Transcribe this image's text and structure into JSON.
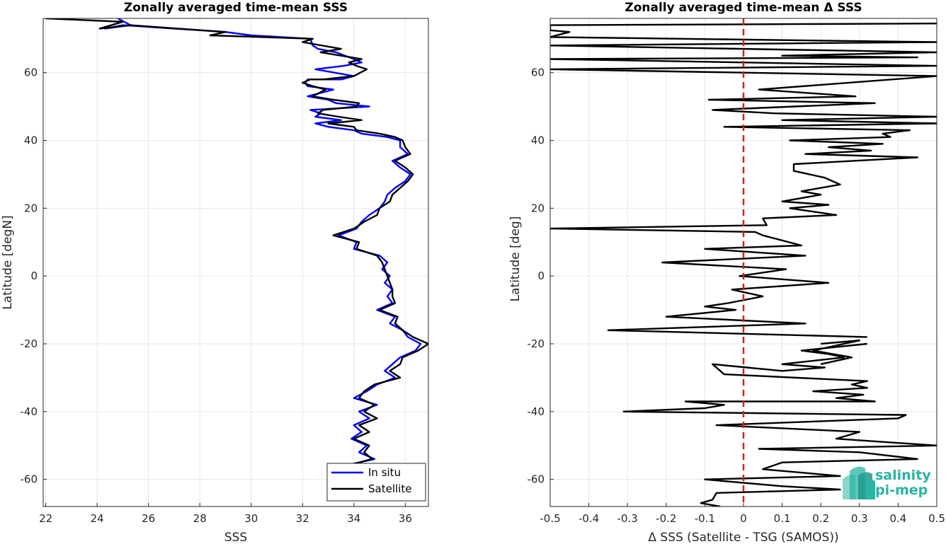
{
  "colors": {
    "insitu": "#0000ff",
    "satellite": "#000000",
    "zero_line": "#e31a1c",
    "logo": "#2bb3a3"
  },
  "logo": {
    "line1": "salinity",
    "line2": "pi-mep"
  },
  "chart_data": [
    {
      "type": "line",
      "title": "Zonally averaged time-mean SSS",
      "xlabel": "SSS",
      "ylabel": "Latitude [degN]",
      "xlim": [
        21.9,
        36.9
      ],
      "ylim": [
        -68,
        76
      ],
      "xticks": [
        22,
        24,
        26,
        28,
        30,
        32,
        34,
        36
      ],
      "yticks": [
        -60,
        -40,
        -20,
        0,
        20,
        40,
        60
      ],
      "grid": true,
      "legend_position": "bottom-right",
      "series": [
        {
          "name": "In situ",
          "color": "#0000ff",
          "x": [
            24.8,
            25.3,
            24.3,
            25.0,
            29.0,
            30.0,
            32.3,
            32.4,
            32.6,
            33.3,
            34.0,
            34.3,
            33.6,
            32.5,
            34.0,
            33.5,
            32.2,
            32.1,
            32.2,
            33.2,
            32.2,
            33.0,
            33.3,
            34.6,
            32.3,
            32.7,
            32.5,
            33.5,
            32.5,
            33.0,
            34.0,
            34.3,
            35.3,
            35.8,
            35.8,
            36.1,
            35.5,
            35.8,
            36.2,
            36.0,
            35.6,
            35.3,
            35.2,
            35.0,
            34.6,
            34.3,
            34.1,
            33.4,
            34.1,
            34.0,
            35.0,
            35.3,
            35.1,
            35.4,
            35.2,
            35.5,
            35.3,
            35.5,
            34.9,
            35.6,
            35.4,
            35.9,
            36.1,
            36.6,
            36.4,
            35.8,
            35.5,
            35.2,
            35.6,
            34.9,
            34.5,
            34.0,
            34.9,
            34.2,
            34.6,
            34.0,
            34.3,
            33.9,
            34.5,
            34.2,
            34.8,
            33.6,
            33.4,
            33.7
          ],
          "y": [
            76,
            74,
            73,
            74,
            72,
            71,
            70,
            68,
            67,
            66,
            64,
            63,
            62,
            61,
            59,
            58,
            58,
            57,
            56,
            55,
            53,
            52,
            51,
            50,
            49,
            48,
            47,
            46,
            45,
            44,
            43,
            42,
            41,
            40,
            38,
            36,
            34,
            32,
            30,
            28,
            26,
            24,
            22,
            20,
            18,
            16,
            14,
            12,
            10,
            8,
            6,
            4,
            2,
            0,
            -2,
            -4,
            -6,
            -8,
            -10,
            -12,
            -14,
            -16,
            -18,
            -20,
            -22,
            -24,
            -26,
            -28,
            -30,
            -32,
            -34,
            -36,
            -38,
            -40,
            -42,
            -44,
            -46,
            -48,
            -50,
            -52,
            -54,
            -56,
            -58,
            -60
          ]
        },
        {
          "name": "Satellite",
          "color": "#000000",
          "x": [
            22.0,
            25.0,
            24.1,
            25.3,
            29.0,
            28.4,
            32.4,
            32.0,
            33.5,
            32.7,
            34.3,
            33.8,
            34.1,
            34.5,
            34.0,
            32.8,
            32.3,
            32.0,
            32.4,
            32.9,
            32.4,
            33.2,
            34.2,
            34.1,
            32.8,
            32.6,
            33.4,
            34.3,
            33.0,
            34.0,
            34.1,
            35.0,
            35.6,
            35.9,
            36.0,
            36.2,
            35.6,
            36.0,
            36.3,
            36.1,
            35.8,
            35.5,
            35.4,
            35.0,
            34.9,
            34.4,
            34.0,
            33.2,
            34.2,
            34.1,
            34.9,
            35.1,
            35.2,
            35.3,
            35.4,
            35.5,
            35.5,
            35.6,
            35.0,
            35.7,
            35.6,
            35.9,
            36.3,
            36.9,
            36.5,
            35.9,
            35.8,
            35.4,
            35.8,
            34.8,
            34.4,
            34.2,
            34.8,
            34.4,
            34.9,
            34.2,
            34.6,
            34.0,
            34.6,
            34.4,
            34.7,
            33.7,
            33.5,
            33.8
          ],
          "y": [
            76,
            75,
            73,
            74,
            72,
            71,
            70,
            69,
            67,
            66,
            64,
            63,
            62,
            61,
            59,
            58,
            58,
            57,
            56,
            55,
            53,
            52,
            51,
            50,
            49,
            48,
            47,
            46,
            45,
            44,
            43,
            42,
            41,
            40,
            38,
            36,
            34,
            32,
            30,
            28,
            26,
            24,
            22,
            20,
            18,
            16,
            14,
            12,
            10,
            8,
            6,
            4,
            2,
            0,
            -2,
            -4,
            -6,
            -8,
            -10,
            -12,
            -14,
            -16,
            -18,
            -20,
            -22,
            -24,
            -26,
            -28,
            -30,
            -32,
            -34,
            -36,
            -38,
            -40,
            -42,
            -44,
            -46,
            -48,
            -50,
            -52,
            -54,
            -56,
            -58,
            -60
          ]
        }
      ]
    },
    {
      "type": "line",
      "title": "Zonally averaged time-mean Δ SSS",
      "xlabel": "Δ SSS (Satellite - TSG (SAMOS))",
      "ylabel": "Latitude [deg]",
      "xlim": [
        -0.5,
        0.5
      ],
      "ylim": [
        -68,
        76
      ],
      "xticks": [
        -0.5,
        -0.4,
        -0.3,
        -0.2,
        -0.1,
        0,
        0.1,
        0.2,
        0.3,
        0.4,
        0.5
      ],
      "xtick_labels": [
        "-0.5",
        "-0.4",
        "-0.3",
        "-0.2",
        "-0.1",
        "0",
        "0.1",
        "0.2",
        "0.3",
        "0.4",
        "0.5"
      ],
      "yticks": [
        -60,
        -40,
        -20,
        0,
        20,
        40,
        60
      ],
      "grid": true,
      "zero_line": {
        "x": 0,
        "style": "dashed",
        "color": "#e31a1c"
      },
      "series": [
        {
          "color": "#000000",
          "x": [
            0.5,
            -0.5,
            -0.5,
            -0.45,
            -0.5,
            0.5,
            -0.5,
            0.5,
            0.1,
            0.45,
            -0.5,
            0.5,
            -0.5,
            0.5,
            0.04,
            0.29,
            -0.09,
            0.34,
            -0.08,
            0.08,
            0.5,
            0.1,
            0.5,
            -0.05,
            0.43,
            0.36,
            0.38,
            0.12,
            0.36,
            0.22,
            0.33,
            0.16,
            0.45,
            0.13,
            0.13,
            0.21,
            0.25,
            0.15,
            0.2,
            0.1,
            0.22,
            0.12,
            0.24,
            0.05,
            0.06,
            -0.5,
            0.03,
            0.05,
            0.15,
            -0.1,
            0.16,
            -0.21,
            0.11,
            -0.01,
            0.22,
            -0.03,
            0.05,
            -0.04,
            -0.1,
            -0.02,
            -0.2,
            0.16,
            -0.35,
            0.32
          ],
          "y": [
            74.5,
            74,
            72.5,
            72,
            70.5,
            69,
            68,
            66,
            65,
            64.5,
            64,
            62,
            61,
            59,
            55,
            53,
            52,
            51,
            49,
            48,
            47,
            46,
            45,
            44,
            43,
            42,
            41,
            40,
            39,
            38,
            37,
            36,
            35,
            33,
            31,
            29,
            27,
            25,
            24,
            22,
            21,
            20,
            18,
            17,
            15,
            14,
            13,
            12,
            9,
            8,
            6,
            4,
            2,
            0,
            -2,
            -4,
            -6,
            -8,
            -9,
            -10,
            -12,
            -14,
            -16,
            -18
          ]
        },
        {
          "color": "#000000",
          "x": [
            0.32,
            0.15,
            0.22,
            0.26,
            0.1,
            0.21,
            0.1,
            -0.08,
            -0.05,
            0.32,
            0.28,
            0.32,
            0.18,
            0.31,
            0.24,
            0.34,
            -0.15,
            -0.05,
            -0.1,
            -0.31,
            0.42,
            0.4,
            -0.07,
            0.3,
            0.24,
            0.5,
            0.04,
            0.3,
            0.45,
            0.1,
            0.05,
            0.15,
            0.25,
            -0.1,
            0.1,
            0.25,
            -0.07,
            -0.08,
            -0.11,
            -0.06
          ],
          "y": [
            -20,
            -22,
            -23,
            -24,
            -26,
            -27,
            -28,
            -26,
            -29,
            -31,
            -32,
            -33,
            -34,
            -35,
            -36,
            -37,
            -37,
            -38,
            -39,
            -40,
            -41,
            -42,
            -44,
            -46,
            -48,
            -50,
            -51,
            -52,
            -54,
            -55,
            -57,
            -58,
            -59,
            -60,
            -62,
            -63,
            -64,
            -66,
            -67,
            -68
          ]
        },
        {
          "color": "#000000",
          "x": [
            0.2,
            0.3,
            0.22,
            0.18,
            0.28,
            0.2
          ],
          "y": [
            -20,
            -19,
            -21,
            -22,
            -24,
            -26
          ]
        }
      ]
    }
  ]
}
